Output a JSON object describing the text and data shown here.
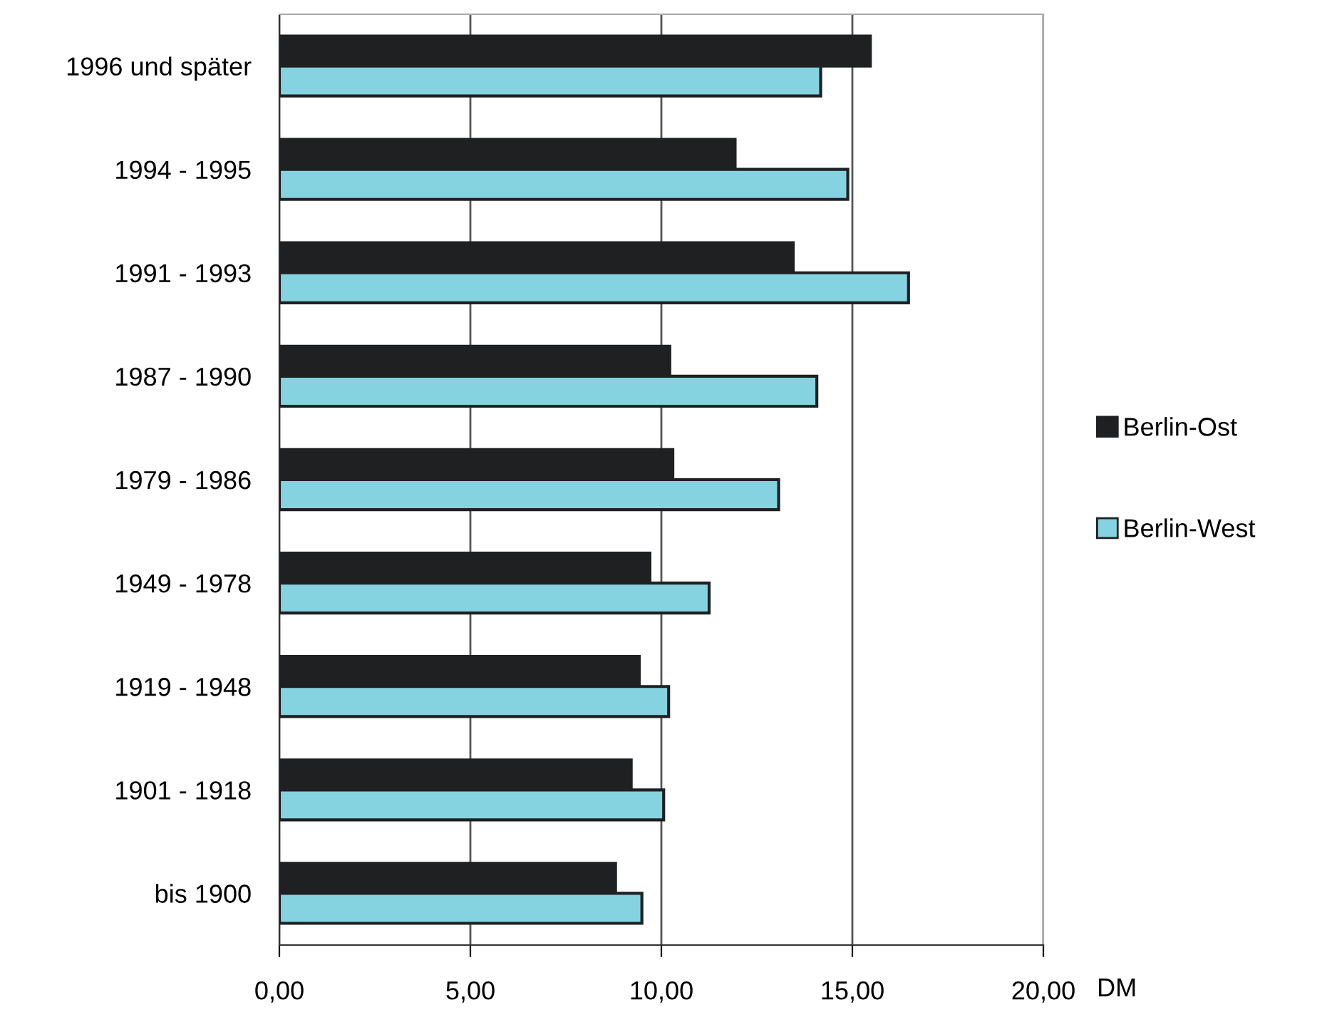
{
  "chart_data": {
    "type": "bar",
    "orientation": "horizontal",
    "xlabel": "DM",
    "categories": [
      "1996 und später",
      "1994 - 1995",
      "1991 - 1993",
      "1987 - 1990",
      "1979 - 1986",
      "1949 - 1978",
      "1919 - 1948",
      "1901 - 1918",
      "bis 1900"
    ],
    "series": [
      {
        "name": "Berlin-Ost",
        "color": "#1f2022",
        "values": [
          15.47,
          11.93,
          13.45,
          10.22,
          10.3,
          9.7,
          9.42,
          9.21,
          8.8
        ]
      },
      {
        "name": "Berlin-West",
        "color": "#85d3e0",
        "values": [
          14.17,
          14.88,
          16.47,
          14.07,
          13.07,
          11.25,
          10.19,
          10.06,
          9.49
        ]
      }
    ],
    "xlim": [
      0,
      20
    ],
    "xticks": [
      {
        "value": 0,
        "label": "0,00"
      },
      {
        "value": 5,
        "label": "5,00"
      },
      {
        "value": 10,
        "label": "10,00"
      },
      {
        "value": 15,
        "label": "15,00"
      },
      {
        "value": 20,
        "label": "20,00"
      }
    ],
    "grid": "x",
    "legend": "right"
  }
}
